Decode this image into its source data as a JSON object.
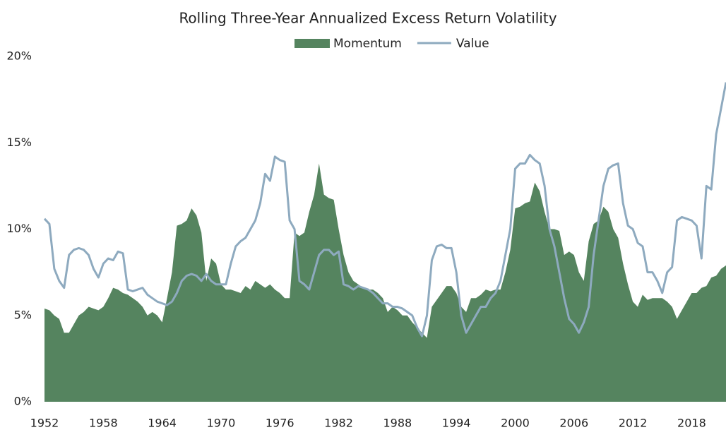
{
  "chart_data": {
    "type": "area-line",
    "title": "Rolling Three-Year Annualized Excess Return Volatility",
    "x": [
      1952,
      1952.5,
      1953,
      1953.5,
      1954,
      1954.5,
      1955,
      1955.5,
      1956,
      1956.5,
      1957,
      1957.5,
      1958,
      1958.5,
      1959,
      1959.5,
      1960,
      1960.5,
      1961,
      1961.5,
      1962,
      1962.5,
      1963,
      1963.5,
      1964,
      1964.5,
      1965,
      1965.5,
      1966,
      1966.5,
      1967,
      1967.5,
      1968,
      1968.5,
      1969,
      1969.5,
      1970,
      1970.5,
      1971,
      1971.5,
      1972,
      1972.5,
      1973,
      1973.5,
      1974,
      1974.5,
      1975,
      1975.5,
      1976,
      1976.5,
      1977,
      1977.5,
      1978,
      1978.5,
      1979,
      1979.5,
      1980,
      1980.5,
      1981,
      1981.5,
      1982,
      1982.5,
      1983,
      1983.5,
      1984,
      1984.5,
      1985,
      1985.5,
      1986,
      1986.5,
      1987,
      1987.5,
      1988,
      1988.5,
      1989,
      1989.5,
      1990,
      1990.5,
      1991,
      1991.5,
      1992,
      1992.5,
      1993,
      1993.5,
      1994,
      1994.5,
      1995,
      1995.5,
      1996,
      1996.5,
      1997,
      1997.5,
      1998,
      1998.5,
      1999,
      1999.5,
      2000,
      2000.5,
      2001,
      2001.5,
      2002,
      2002.5,
      2003,
      2003.5,
      2004,
      2004.5,
      2005,
      2005.5,
      2006,
      2006.5,
      2007,
      2007.5,
      2008,
      2008.5,
      2009,
      2009.5,
      2010,
      2010.5,
      2011,
      2011.5,
      2012,
      2012.5,
      2013,
      2013.5,
      2014,
      2014.5,
      2015,
      2015.5,
      2016,
      2016.5,
      2017,
      2017.5,
      2018,
      2018.5,
      2019,
      2019.5,
      2020,
      2020.5,
      2021,
      2021.5
    ],
    "series": [
      {
        "name": "Momentum",
        "kind": "area",
        "color": "#55845f",
        "values": [
          5.4,
          5.3,
          5.0,
          4.8,
          4.0,
          4.0,
          4.5,
          5.0,
          5.2,
          5.5,
          5.4,
          5.3,
          5.5,
          6.0,
          6.6,
          6.5,
          6.3,
          6.2,
          6.0,
          5.8,
          5.5,
          5.0,
          5.2,
          5.0,
          4.6,
          6.0,
          7.5,
          10.2,
          10.3,
          10.5,
          11.2,
          10.8,
          9.8,
          7.0,
          8.3,
          8.0,
          6.8,
          6.5,
          6.5,
          6.4,
          6.3,
          6.7,
          6.5,
          7.0,
          6.8,
          6.6,
          6.8,
          6.5,
          6.3,
          6.0,
          6.0,
          9.8,
          9.6,
          9.8,
          11.0,
          12.0,
          13.8,
          12.0,
          11.8,
          11.7,
          10.0,
          8.5,
          7.5,
          7.0,
          6.8,
          6.6,
          6.5,
          6.5,
          6.3,
          6.0,
          5.2,
          5.5,
          5.3,
          5.0,
          5.0,
          4.6,
          4.3,
          4.0,
          3.7,
          5.5,
          5.9,
          6.3,
          6.7,
          6.7,
          6.3,
          5.5,
          5.2,
          6.0,
          6.0,
          6.2,
          6.5,
          6.4,
          6.5,
          6.5,
          7.5,
          8.8,
          11.2,
          11.3,
          11.5,
          11.6,
          12.7,
          12.2,
          11.0,
          10.0,
          10.0,
          9.9,
          8.5,
          8.7,
          8.5,
          7.5,
          7.0,
          9.3,
          10.3,
          10.5,
          11.3,
          11.0,
          10.0,
          9.5,
          8.0,
          6.8,
          5.8,
          5.5,
          6.2,
          5.9,
          6.0,
          6.0,
          6.0,
          5.8,
          5.5,
          4.8,
          5.3,
          5.8,
          6.3,
          6.3,
          6.6,
          6.7,
          7.2,
          7.3,
          7.7,
          7.9
        ]
      },
      {
        "name": "Value",
        "kind": "line",
        "color": "#8eaabf",
        "values": [
          10.6,
          10.3,
          7.7,
          7.0,
          6.6,
          8.5,
          8.8,
          8.9,
          8.8,
          8.5,
          7.7,
          7.2,
          8.0,
          8.3,
          8.2,
          8.7,
          8.6,
          6.5,
          6.4,
          6.5,
          6.6,
          6.2,
          6.0,
          5.8,
          5.7,
          5.6,
          5.8,
          6.3,
          7.0,
          7.3,
          7.4,
          7.3,
          7.0,
          7.4,
          7.0,
          6.8,
          6.8,
          6.8,
          8.0,
          9.0,
          9.3,
          9.5,
          10.0,
          10.5,
          11.5,
          13.2,
          12.8,
          14.2,
          14.0,
          13.9,
          10.5,
          10.0,
          7.0,
          6.8,
          6.5,
          7.5,
          8.5,
          8.8,
          8.8,
          8.5,
          8.7,
          6.8,
          6.7,
          6.5,
          6.7,
          6.6,
          6.5,
          6.3,
          6.0,
          5.7,
          5.7,
          5.5,
          5.5,
          5.4,
          5.2,
          5.0,
          4.3,
          3.8,
          5.0,
          8.2,
          9.0,
          9.1,
          8.9,
          8.9,
          7.5,
          5.0,
          4.0,
          4.5,
          5.0,
          5.5,
          5.5,
          6.0,
          6.3,
          7.0,
          8.5,
          10.0,
          13.5,
          13.8,
          13.8,
          14.3,
          14.0,
          13.8,
          12.5,
          10.0,
          9.0,
          7.5,
          6.0,
          4.8,
          4.5,
          4.0,
          4.6,
          5.5,
          8.5,
          10.5,
          12.5,
          13.5,
          13.7,
          13.8,
          11.5,
          10.2,
          10.0,
          9.2,
          9.0,
          7.5,
          7.5,
          7.0,
          6.3,
          7.5,
          7.8,
          10.5,
          10.7,
          10.6,
          10.5,
          10.2,
          8.3,
          12.5,
          12.3,
          15.5,
          17.0,
          18.5
        ]
      }
    ],
    "xlim": [
      1952,
      2021.5
    ],
    "xticks": [
      1952,
      1958,
      1964,
      1970,
      1976,
      1982,
      1988,
      1994,
      2000,
      2006,
      2012,
      2018
    ],
    "ylim": [
      0,
      20
    ],
    "yticks": [
      {
        "value": 0,
        "label": "0%"
      },
      {
        "value": 5,
        "label": "5%"
      },
      {
        "value": 10,
        "label": "10%"
      },
      {
        "value": 15,
        "label": "15%"
      },
      {
        "value": 20,
        "label": "20%"
      }
    ],
    "grid": false
  }
}
